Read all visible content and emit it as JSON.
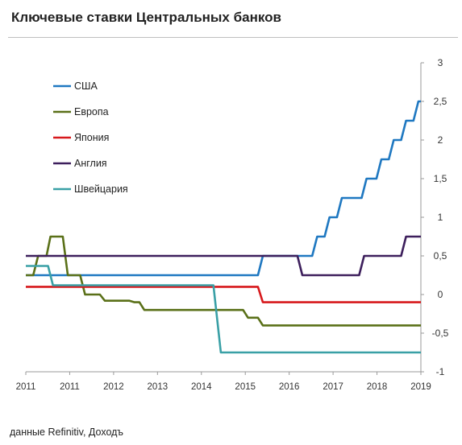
{
  "header": {
    "title": "Ключевые ставки Центральных банков"
  },
  "footer": {
    "source": "данные  Refinitiv, Доходъ"
  },
  "chart_data": {
    "type": "line",
    "title": "Ключевые ставки Центральных банков",
    "xlabel": "",
    "ylabel": "",
    "xlim": [
      2011.0,
      2019.0
    ],
    "ylim": [
      -1,
      3
    ],
    "y_ticks": [
      3,
      2.5,
      2,
      1.5,
      1,
      0.5,
      0,
      -0.5,
      -1
    ],
    "y_tick_labels": [
      "3",
      "2,5",
      "2",
      "1,5",
      "1",
      "0,5",
      "0",
      "-0,5",
      "-1"
    ],
    "x_tick_labels": [
      "2011",
      "2011",
      "2012",
      "2013",
      "2014",
      "2015",
      "2016",
      "2017",
      "2018",
      "2019"
    ],
    "grid": false,
    "legend_position": "top-left",
    "series": [
      {
        "name": "США",
        "color": "#1f78c1",
        "points": [
          [
            2011.0,
            0.25
          ],
          [
            2015.7,
            0.25
          ],
          [
            2015.8,
            0.5
          ],
          [
            2016.8,
            0.5
          ],
          [
            2016.9,
            0.75
          ],
          [
            2017.05,
            0.75
          ],
          [
            2017.15,
            1.0
          ],
          [
            2017.3,
            1.0
          ],
          [
            2017.4,
            1.25
          ],
          [
            2017.8,
            1.25
          ],
          [
            2017.9,
            1.5
          ],
          [
            2018.1,
            1.5
          ],
          [
            2018.2,
            1.75
          ],
          [
            2018.35,
            1.75
          ],
          [
            2018.45,
            2.0
          ],
          [
            2018.6,
            2.0
          ],
          [
            2018.7,
            2.25
          ],
          [
            2018.85,
            2.25
          ],
          [
            2018.95,
            2.5
          ],
          [
            2019.0,
            2.5
          ]
        ]
      },
      {
        "name": "Европа",
        "color": "#5a7018",
        "points": [
          [
            2011.0,
            0.25
          ],
          [
            2011.15,
            0.25
          ],
          [
            2011.25,
            0.5
          ],
          [
            2011.42,
            0.5
          ],
          [
            2011.5,
            0.75
          ],
          [
            2011.75,
            0.75
          ],
          [
            2011.85,
            0.25
          ],
          [
            2012.1,
            0.25
          ],
          [
            2012.2,
            0.0
          ],
          [
            2012.5,
            0.0
          ],
          [
            2012.6,
            -0.08
          ],
          [
            2013.1,
            -0.08
          ],
          [
            2013.2,
            -0.1
          ],
          [
            2013.3,
            -0.1
          ],
          [
            2013.4,
            -0.2
          ],
          [
            2015.4,
            -0.2
          ],
          [
            2015.5,
            -0.3
          ],
          [
            2015.7,
            -0.3
          ],
          [
            2015.8,
            -0.4
          ],
          [
            2019.0,
            -0.4
          ]
        ]
      },
      {
        "name": "Япония",
        "color": "#d7191c",
        "points": [
          [
            2011.0,
            0.1
          ],
          [
            2015.7,
            0.1
          ],
          [
            2015.8,
            -0.1
          ],
          [
            2019.0,
            -0.1
          ]
        ]
      },
      {
        "name": "Англия",
        "color": "#3d1f5c",
        "points": [
          [
            2011.0,
            0.5
          ],
          [
            2016.5,
            0.5
          ],
          [
            2016.6,
            0.25
          ],
          [
            2017.75,
            0.25
          ],
          [
            2017.85,
            0.5
          ],
          [
            2018.6,
            0.5
          ],
          [
            2018.7,
            0.75
          ],
          [
            2019.0,
            0.75
          ]
        ]
      },
      {
        "name": "Швейцария",
        "color": "#3aa0a6",
        "points": [
          [
            2011.0,
            0.37
          ],
          [
            2011.45,
            0.37
          ],
          [
            2011.55,
            0.12
          ],
          [
            2014.8,
            0.12
          ],
          [
            2014.95,
            -0.75
          ],
          [
            2019.0,
            -0.75
          ]
        ]
      }
    ]
  }
}
